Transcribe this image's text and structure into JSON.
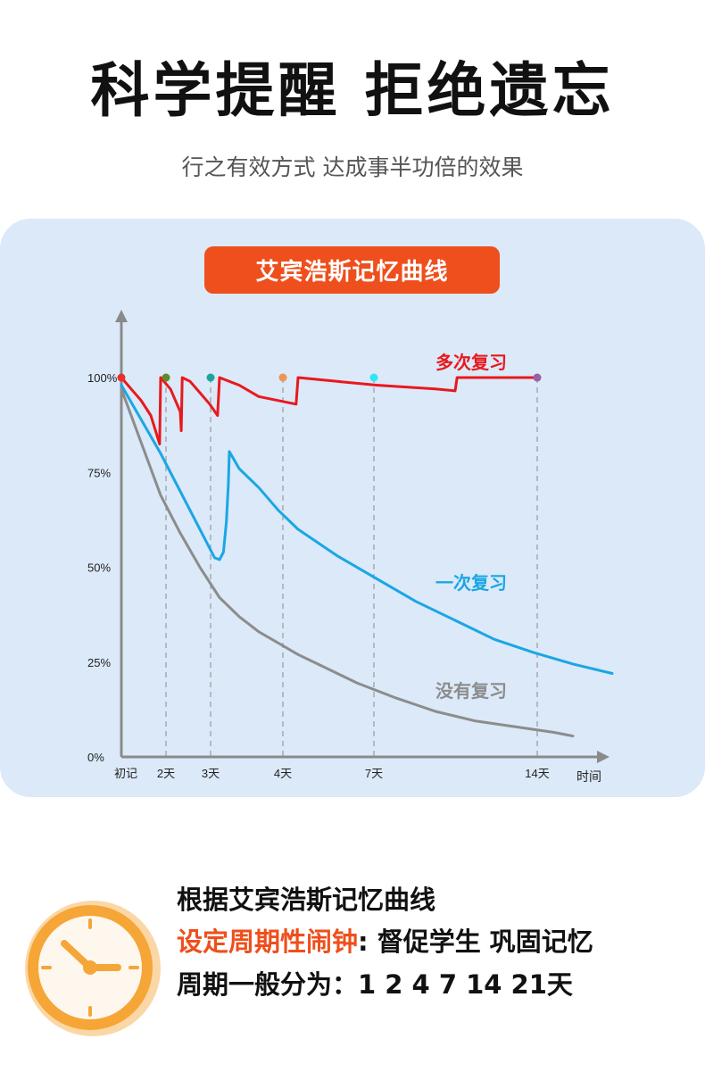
{
  "header": {
    "title": "科学提醒 拒绝遗忘",
    "subtitle": "行之有效方式 达成事半功倍的效果"
  },
  "chart_data": {
    "type": "line",
    "title": "艾宾浩斯记忆曲线",
    "xlabel": "时间",
    "ylabel": "",
    "ylim": [
      0,
      100
    ],
    "x_tick_labels": [
      {
        "day": 0,
        "label": "初记"
      },
      {
        "day": 2,
        "label": "2天"
      },
      {
        "day": 3,
        "label": "3天"
      },
      {
        "day": 4,
        "label": "4天"
      },
      {
        "day": 7,
        "label": "7天"
      },
      {
        "day": 14,
        "label": "14天"
      }
    ],
    "y_tick_labels": [
      {
        "value": 0,
        "label": "0%"
      },
      {
        "value": 25,
        "label": "25%"
      },
      {
        "value": 50,
        "label": "50%"
      },
      {
        "value": 75,
        "label": "75%"
      },
      {
        "value": 100,
        "label": "100%"
      }
    ],
    "review_markers": [
      {
        "day": 0,
        "color": "#e8312c"
      },
      {
        "day": 2,
        "color": "#5e8a2a"
      },
      {
        "day": 3,
        "color": "#1fa39a"
      },
      {
        "day": 4,
        "color": "#ef9550"
      },
      {
        "day": 7,
        "color": "#2fe6f1"
      },
      {
        "day": 14,
        "color": "#9b5ea6"
      }
    ],
    "series": [
      {
        "name": "多次复习",
        "color": "#e8191d",
        "points": [
          [
            0,
            100
          ],
          [
            0.5,
            97
          ],
          [
            1,
            94
          ],
          [
            1.5,
            90
          ],
          [
            1.95,
            82.5
          ],
          [
            2,
            100
          ],
          [
            2.5,
            97
          ],
          [
            3,
            91
          ],
          [
            3.05,
            86
          ],
          [
            3.1,
            100
          ],
          [
            3.5,
            99
          ],
          [
            4,
            96
          ],
          [
            4.5,
            93
          ],
          [
            4.9,
            90
          ],
          [
            5,
            100
          ],
          [
            6,
            98
          ],
          [
            7,
            95
          ],
          [
            8.9,
            93
          ],
          [
            9,
            100
          ],
          [
            11,
            99
          ],
          [
            13,
            98
          ],
          [
            16,
            97
          ],
          [
            17,
            96.5
          ],
          [
            17.1,
            100
          ],
          [
            20,
            100
          ],
          [
            21.2,
            100
          ]
        ]
      },
      {
        "name": "一次复习",
        "color": "#1ba6e4",
        "points": [
          [
            0,
            98
          ],
          [
            1,
            89
          ],
          [
            2,
            80
          ],
          [
            3,
            70
          ],
          [
            4,
            60
          ],
          [
            4.5,
            55
          ],
          [
            4.75,
            52.5
          ],
          [
            5,
            52
          ],
          [
            5.2,
            54
          ],
          [
            5.35,
            62
          ],
          [
            5.45,
            72
          ],
          [
            5.5,
            80.5
          ],
          [
            6,
            76
          ],
          [
            7,
            71
          ],
          [
            8,
            65
          ],
          [
            9,
            60
          ],
          [
            11,
            53
          ],
          [
            13,
            47
          ],
          [
            15,
            41
          ],
          [
            17,
            36
          ],
          [
            19,
            31
          ],
          [
            21,
            27.5
          ],
          [
            23,
            24.5
          ],
          [
            25,
            22
          ]
        ]
      },
      {
        "name": "没有复习",
        "color": "#8c8c8c",
        "points": [
          [
            0,
            97
          ],
          [
            1,
            83
          ],
          [
            2,
            69
          ],
          [
            3,
            59
          ],
          [
            4,
            50
          ],
          [
            5,
            42
          ],
          [
            6,
            37
          ],
          [
            7,
            33
          ],
          [
            8,
            30
          ],
          [
            9,
            27
          ],
          [
            10,
            24.5
          ],
          [
            11,
            22
          ],
          [
            12,
            19.5
          ],
          [
            14,
            15.5
          ],
          [
            16,
            12
          ],
          [
            18,
            9.5
          ],
          [
            20,
            8
          ],
          [
            22,
            6.5
          ],
          [
            23,
            5.5
          ]
        ]
      }
    ]
  },
  "notes": {
    "line1": "根据艾宾浩斯记忆曲线",
    "line2_accent": "设定周期性闹钟",
    "line2_rest": ": 督促学生 巩固记忆",
    "line3": "周期一般分为：1 2 4 7 14 21天"
  },
  "icons": {
    "clock": "clock-icon"
  }
}
